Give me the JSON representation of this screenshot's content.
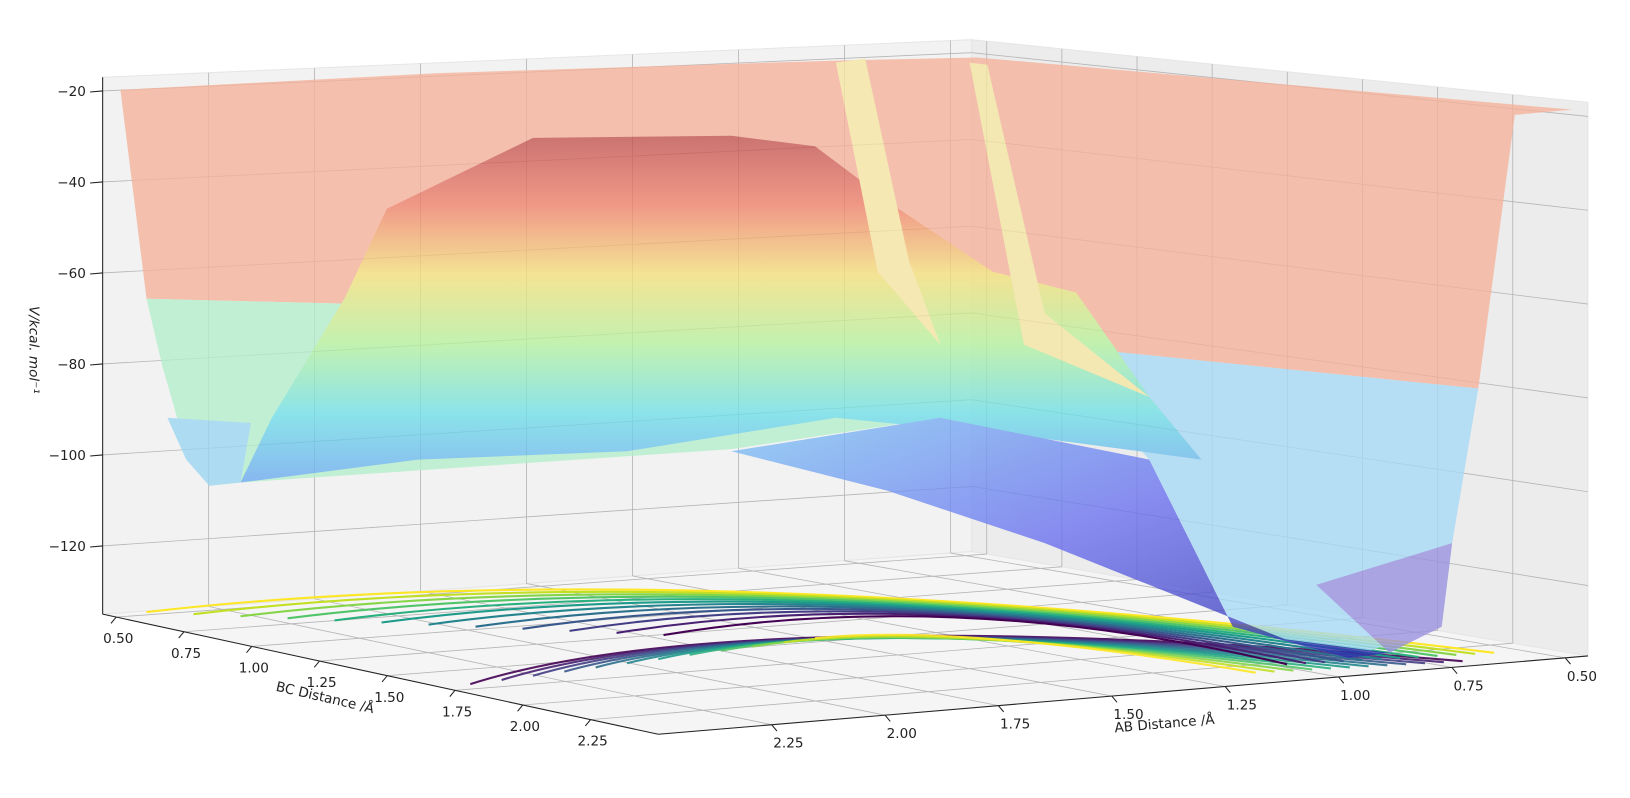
{
  "chart_data": {
    "type": "surface3d",
    "xlabel": "AB Distance /Å",
    "ylabel": "BC Distance /Å",
    "zlabel": "V/kcal. mol⁻¹",
    "xlim": [
      0.45,
      2.5
    ],
    "ylim": [
      0.45,
      2.5
    ],
    "zlim": [
      -135,
      -17
    ],
    "xticks": [
      {
        "value": 0.5,
        "label": "0.50"
      },
      {
        "value": 0.75,
        "label": "0.75"
      },
      {
        "value": 1.0,
        "label": "1.00"
      },
      {
        "value": 1.25,
        "label": "1.25"
      },
      {
        "value": 1.5,
        "label": "1.50"
      },
      {
        "value": 1.75,
        "label": "1.75"
      },
      {
        "value": 2.0,
        "label": "2.00"
      },
      {
        "value": 2.25,
        "label": "2.25"
      }
    ],
    "yticks": [
      {
        "value": 0.5,
        "label": "0.50"
      },
      {
        "value": 0.75,
        "label": "0.75"
      },
      {
        "value": 1.0,
        "label": "1.00"
      },
      {
        "value": 1.25,
        "label": "1.25"
      },
      {
        "value": 1.5,
        "label": "1.50"
      },
      {
        "value": 1.75,
        "label": "1.75"
      },
      {
        "value": 2.0,
        "label": "2.00"
      },
      {
        "value": 2.25,
        "label": "2.25"
      }
    ],
    "zticks": [
      {
        "value": -120,
        "label": "−120"
      },
      {
        "value": -100,
        "label": "−100"
      },
      {
        "value": -80,
        "label": "−80"
      },
      {
        "value": -60,
        "label": "−60"
      },
      {
        "value": -40,
        "label": "−40"
      },
      {
        "value": -20,
        "label": "−20"
      }
    ],
    "grid": true
  }
}
